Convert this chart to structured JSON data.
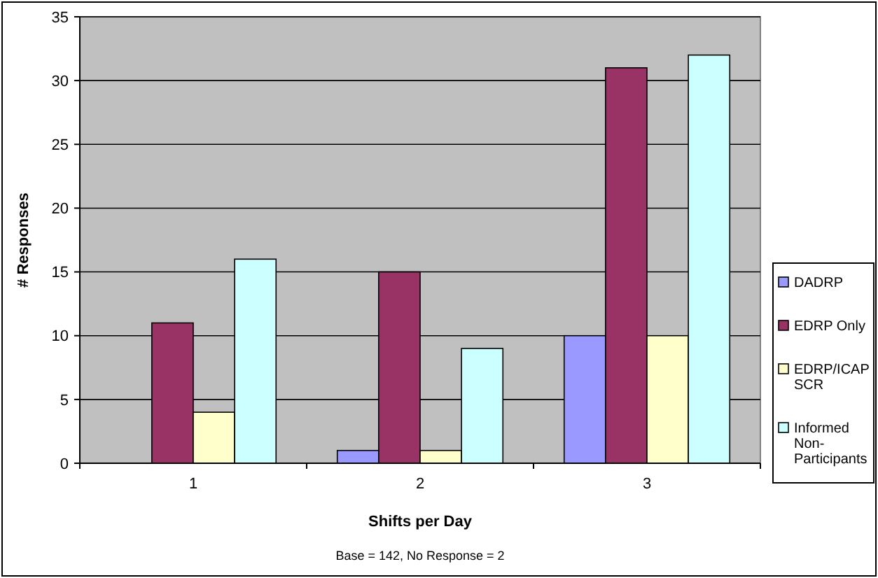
{
  "chart_data": {
    "type": "bar",
    "xlabel": "Shifts per Day",
    "ylabel": "# Responses",
    "categories": [
      "1",
      "2",
      "3"
    ],
    "series": [
      {
        "name": "DADRP",
        "color": "#9999ff",
        "values": [
          0,
          1,
          10
        ]
      },
      {
        "name": "EDRP Only",
        "color": "#993366",
        "values": [
          11,
          15,
          31
        ]
      },
      {
        "name": "EDRP/ICAP SCR",
        "color": "#ffffcc",
        "values": [
          4,
          1,
          10
        ]
      },
      {
        "name": "Informed Non-Participants",
        "color": "#ccffff",
        "values": [
          16,
          9,
          32
        ]
      }
    ],
    "ylim": [
      0,
      35
    ],
    "yticks": [
      0,
      5,
      10,
      15,
      20,
      25,
      30,
      35
    ],
    "grid": "y",
    "legend": "right",
    "annotations": [
      "Base = 142, No Response = 2"
    ]
  }
}
